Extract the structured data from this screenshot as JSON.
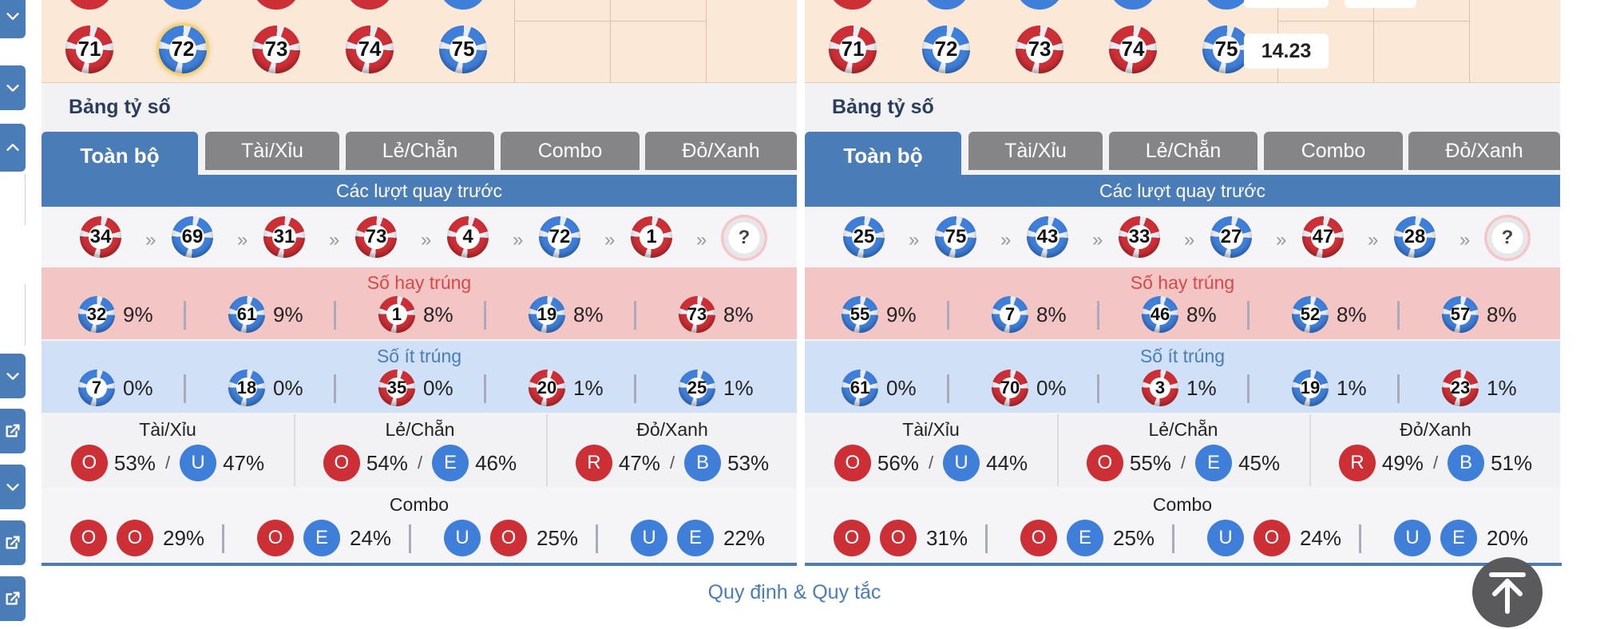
{
  "colors": {
    "red": "#cc2f35",
    "blue": "#3f7fd9",
    "accent": "#4a7cb8",
    "tab_inactive": "#858588",
    "hot_bg": "#f4c5c5",
    "cold_bg": "#cfe0f7",
    "top_bg": "#fbe8d7"
  },
  "sidebar": {
    "icons": [
      "chevron-down-icon",
      "chevron-down-icon",
      "chevron-up-icon",
      "chevron-down-icon",
      "external-link-icon",
      "chevron-down-icon",
      "external-link-icon",
      "external-link-icon"
    ]
  },
  "panels": [
    {
      "top_balls": [
        {
          "n": "71",
          "c": "red"
        },
        {
          "n": "72",
          "c": "blue",
          "selected": true
        },
        {
          "n": "73",
          "c": "red"
        },
        {
          "n": "74",
          "c": "red"
        },
        {
          "n": "75",
          "c": "blue"
        }
      ],
      "top_value": "",
      "title": "Bảng tỷ số",
      "tabs": [
        "Toàn bộ",
        "Tài/Xỉu",
        "Lẻ/Chẵn",
        "Combo",
        "Đỏ/Xanh"
      ],
      "history_label": "Các lượt quay trước",
      "history": [
        {
          "n": "34",
          "c": "red"
        },
        {
          "n": "69",
          "c": "blue"
        },
        {
          "n": "31",
          "c": "red"
        },
        {
          "n": "73",
          "c": "red"
        },
        {
          "n": "4",
          "c": "red"
        },
        {
          "n": "72",
          "c": "blue"
        },
        {
          "n": "1",
          "c": "red"
        }
      ],
      "next_label": "?",
      "hot_label": "Số hay trúng",
      "hot": [
        {
          "n": "32",
          "c": "blue",
          "p": "9%"
        },
        {
          "n": "61",
          "c": "blue",
          "p": "9%"
        },
        {
          "n": "1",
          "c": "red",
          "p": "8%"
        },
        {
          "n": "19",
          "c": "blue",
          "p": "8%"
        },
        {
          "n": "73",
          "c": "red",
          "p": "8%"
        }
      ],
      "cold_label": "Số ít trúng",
      "cold": [
        {
          "n": "7",
          "c": "blue",
          "p": "0%"
        },
        {
          "n": "18",
          "c": "blue",
          "p": "0%"
        },
        {
          "n": "35",
          "c": "red",
          "p": "0%"
        },
        {
          "n": "20",
          "c": "red",
          "p": "1%"
        },
        {
          "n": "25",
          "c": "blue",
          "p": "1%"
        }
      ],
      "ratios": [
        {
          "title": "Tài/Xỉu",
          "a": {
            "l": "O",
            "c": "red",
            "p": "53%"
          },
          "b": {
            "l": "U",
            "c": "blue",
            "p": "47%"
          }
        },
        {
          "title": "Lẻ/Chẵn",
          "a": {
            "l": "O",
            "c": "red",
            "p": "54%"
          },
          "b": {
            "l": "E",
            "c": "blue",
            "p": "46%"
          }
        },
        {
          "title": "Đỏ/Xanh",
          "a": {
            "l": "R",
            "c": "red",
            "p": "47%"
          },
          "b": {
            "l": "B",
            "c": "blue",
            "p": "53%"
          }
        }
      ],
      "slash": "/",
      "combo_label": "Combo",
      "combo": [
        {
          "a": {
            "l": "O",
            "c": "red"
          },
          "b": {
            "l": "O",
            "c": "red"
          },
          "p": "29%"
        },
        {
          "a": {
            "l": "O",
            "c": "red"
          },
          "b": {
            "l": "E",
            "c": "blue"
          },
          "p": "24%"
        },
        {
          "a": {
            "l": "U",
            "c": "blue"
          },
          "b": {
            "l": "O",
            "c": "red"
          },
          "p": "25%"
        },
        {
          "a": {
            "l": "U",
            "c": "blue"
          },
          "b": {
            "l": "E",
            "c": "blue"
          },
          "p": "22%"
        }
      ]
    },
    {
      "top_balls": [
        {
          "n": "71",
          "c": "red"
        },
        {
          "n": "72",
          "c": "blue"
        },
        {
          "n": "73",
          "c": "red"
        },
        {
          "n": "74",
          "c": "red"
        },
        {
          "n": "75",
          "c": "blue"
        }
      ],
      "top_value": "14.23",
      "title": "Bảng tỷ số",
      "tabs": [
        "Toàn bộ",
        "Tài/Xỉu",
        "Lẻ/Chẵn",
        "Combo",
        "Đỏ/Xanh"
      ],
      "history_label": "Các lượt quay trước",
      "history": [
        {
          "n": "25",
          "c": "blue"
        },
        {
          "n": "75",
          "c": "blue"
        },
        {
          "n": "43",
          "c": "blue"
        },
        {
          "n": "33",
          "c": "red"
        },
        {
          "n": "27",
          "c": "blue"
        },
        {
          "n": "47",
          "c": "red"
        },
        {
          "n": "28",
          "c": "blue"
        }
      ],
      "next_label": "?",
      "hot_label": "Số hay trúng",
      "hot": [
        {
          "n": "55",
          "c": "blue",
          "p": "9%"
        },
        {
          "n": "7",
          "c": "blue",
          "p": "8%"
        },
        {
          "n": "46",
          "c": "blue",
          "p": "8%"
        },
        {
          "n": "52",
          "c": "blue",
          "p": "8%"
        },
        {
          "n": "57",
          "c": "blue",
          "p": "8%"
        }
      ],
      "cold_label": "Số ít trúng",
      "cold": [
        {
          "n": "61",
          "c": "blue",
          "p": "0%"
        },
        {
          "n": "70",
          "c": "red",
          "p": "0%"
        },
        {
          "n": "3",
          "c": "red",
          "p": "1%"
        },
        {
          "n": "19",
          "c": "blue",
          "p": "1%"
        },
        {
          "n": "23",
          "c": "red",
          "p": "1%"
        }
      ],
      "ratios": [
        {
          "title": "Tài/Xỉu",
          "a": {
            "l": "O",
            "c": "red",
            "p": "56%"
          },
          "b": {
            "l": "U",
            "c": "blue",
            "p": "44%"
          }
        },
        {
          "title": "Lẻ/Chẵn",
          "a": {
            "l": "O",
            "c": "red",
            "p": "55%"
          },
          "b": {
            "l": "E",
            "c": "blue",
            "p": "45%"
          }
        },
        {
          "title": "Đỏ/Xanh",
          "a": {
            "l": "R",
            "c": "red",
            "p": "49%"
          },
          "b": {
            "l": "B",
            "c": "blue",
            "p": "51%"
          }
        }
      ],
      "slash": "/",
      "combo_label": "Combo",
      "combo": [
        {
          "a": {
            "l": "O",
            "c": "red"
          },
          "b": {
            "l": "O",
            "c": "red"
          },
          "p": "31%"
        },
        {
          "a": {
            "l": "O",
            "c": "red"
          },
          "b": {
            "l": "E",
            "c": "blue"
          },
          "p": "25%"
        },
        {
          "a": {
            "l": "U",
            "c": "blue"
          },
          "b": {
            "l": "O",
            "c": "red"
          },
          "p": "24%"
        },
        {
          "a": {
            "l": "U",
            "c": "blue"
          },
          "b": {
            "l": "E",
            "c": "blue"
          },
          "p": "20%"
        }
      ]
    }
  ],
  "footer": {
    "rules_link": "Quy định & Quy tắc"
  },
  "scroll_top": {
    "icon": "arrow-up-icon"
  }
}
